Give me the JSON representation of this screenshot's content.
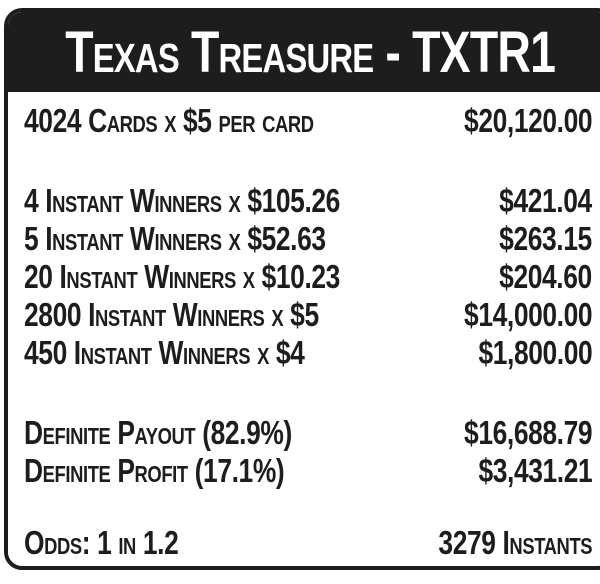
{
  "header": {
    "title": "Texas Treasure - TXTR1"
  },
  "sections": [
    {
      "name": "cards",
      "rows": [
        {
          "label": "4024 Cards x $5 per card",
          "value": "$20,120.00"
        }
      ]
    },
    {
      "name": "winners",
      "rows": [
        {
          "label": "4 Instant Winners x $105.26",
          "value": "$421.04"
        },
        {
          "label": "5 Instant Winners x $52.63",
          "value": "$263.15"
        },
        {
          "label": "20 Instant Winners x $10.23",
          "value": "$204.60"
        },
        {
          "label": "2800 Instant Winners x $5",
          "value": "$14,000.00"
        },
        {
          "label": "450 Instant Winners x $4",
          "value": "$1,800.00"
        }
      ]
    },
    {
      "name": "totals",
      "rows": [
        {
          "label": "Definite Payout (82.9%)",
          "value": "$16,688.79"
        },
        {
          "label": "Definite Profit (17.1%)",
          "value": "$3,431.21"
        }
      ]
    },
    {
      "name": "odds",
      "rows": [
        {
          "label": "Odds: 1 in 1.2",
          "value": "3279 Instants"
        }
      ]
    }
  ],
  "colors": {
    "ink": "#1d1d1d",
    "paper": "#ffffff"
  }
}
